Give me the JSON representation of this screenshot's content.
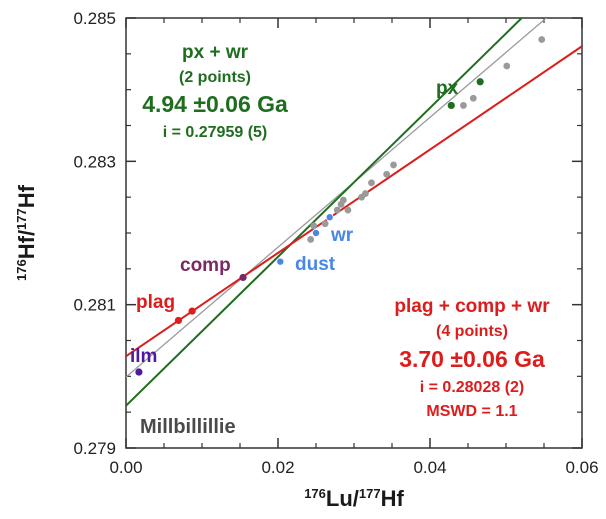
{
  "chart_data": {
    "type": "scatter",
    "xlabel": {
      "sup": "176",
      "main": "Lu/",
      "sup2": "177",
      "main2": "Hf"
    },
    "ylabel": {
      "sup": "176",
      "main": "Hf/",
      "sup2": "177",
      "main2": "Hf"
    },
    "xlim": [
      0.0,
      0.06
    ],
    "ylim": [
      0.279,
      0.285
    ],
    "x_ticks": [
      0.0,
      0.02,
      0.04,
      0.06
    ],
    "x_tick_labels": [
      "0.00",
      "0.02",
      "0.04",
      "0.06"
    ],
    "y_ticks": [
      0.279,
      0.281,
      0.283,
      0.285
    ],
    "y_tick_labels": [
      "0.279",
      "0.281",
      "0.283",
      "0.285"
    ],
    "minor_x_step": 0.005,
    "minor_y_step": 0.0005,
    "grid": false,
    "colors": {
      "green": "#1f6e1f",
      "red": "#dd1c1c",
      "gray": "#9a9a9a",
      "blue": "#4a86e8",
      "purple": "#7a2a62",
      "indigo": "#4b1a9e",
      "darkgray": "#4a4a4a"
    },
    "lines": [
      {
        "color": "gray",
        "intercept": 0.27999,
        "slope": 0.0906
      },
      {
        "color": "green",
        "intercept": 0.27959,
        "slope": 0.1039
      },
      {
        "color": "red",
        "intercept": 0.28028,
        "slope": 0.0721
      }
    ],
    "points": [
      {
        "x": 0.0017,
        "y": 0.28006,
        "color": "indigo"
      },
      {
        "x": 0.0069,
        "y": 0.28078,
        "color": "red"
      },
      {
        "x": 0.0087,
        "y": 0.28091,
        "color": "red"
      },
      {
        "x": 0.0154,
        "y": 0.28138,
        "color": "purple"
      },
      {
        "x": 0.0203,
        "y": 0.2816,
        "color": "blue"
      },
      {
        "x": 0.0243,
        "y": 0.28191,
        "color": "gray"
      },
      {
        "x": 0.025,
        "y": 0.282,
        "color": "blue"
      },
      {
        "x": 0.0247,
        "y": 0.2821,
        "color": "gray"
      },
      {
        "x": 0.0262,
        "y": 0.28213,
        "color": "gray"
      },
      {
        "x": 0.0268,
        "y": 0.28222,
        "color": "blue"
      },
      {
        "x": 0.0278,
        "y": 0.28232,
        "color": "gray"
      },
      {
        "x": 0.0283,
        "y": 0.2824,
        "color": "gray"
      },
      {
        "x": 0.0286,
        "y": 0.28246,
        "color": "gray"
      },
      {
        "x": 0.0292,
        "y": 0.28232,
        "color": "gray"
      },
      {
        "x": 0.031,
        "y": 0.2825,
        "color": "gray"
      },
      {
        "x": 0.0315,
        "y": 0.28255,
        "color": "gray"
      },
      {
        "x": 0.0323,
        "y": 0.2827,
        "color": "gray"
      },
      {
        "x": 0.0343,
        "y": 0.28282,
        "color": "gray"
      },
      {
        "x": 0.0352,
        "y": 0.28295,
        "color": "gray"
      },
      {
        "x": 0.0428,
        "y": 0.28378,
        "color": "green"
      },
      {
        "x": 0.0444,
        "y": 0.28378,
        "color": "gray"
      },
      {
        "x": 0.0457,
        "y": 0.28388,
        "color": "gray"
      },
      {
        "x": 0.0466,
        "y": 0.28411,
        "color": "green"
      },
      {
        "x": 0.0501,
        "y": 0.28433,
        "color": "gray"
      },
      {
        "x": 0.0547,
        "y": 0.2847,
        "color": "gray"
      }
    ],
    "point_labels": [
      {
        "text": "ilm",
        "color": "indigo"
      },
      {
        "text": "plag",
        "color": "red"
      },
      {
        "text": "comp",
        "color": "purple"
      },
      {
        "text": "dust",
        "color": "blue"
      },
      {
        "text": "wr",
        "color": "blue"
      },
      {
        "text": "px",
        "color": "green"
      }
    ],
    "annotations": {
      "green_block": [
        "px + wr",
        "(2 points)",
        "4.94 ±0.06 Ga",
        "i = 0.27959 (5)"
      ],
      "red_block": [
        "plag + comp + wr",
        "(4 points)",
        "3.70 ±0.06 Ga",
        "i = 0.28028 (2)",
        "MSWD = 1.1"
      ],
      "sample": "Millbillillie"
    }
  }
}
